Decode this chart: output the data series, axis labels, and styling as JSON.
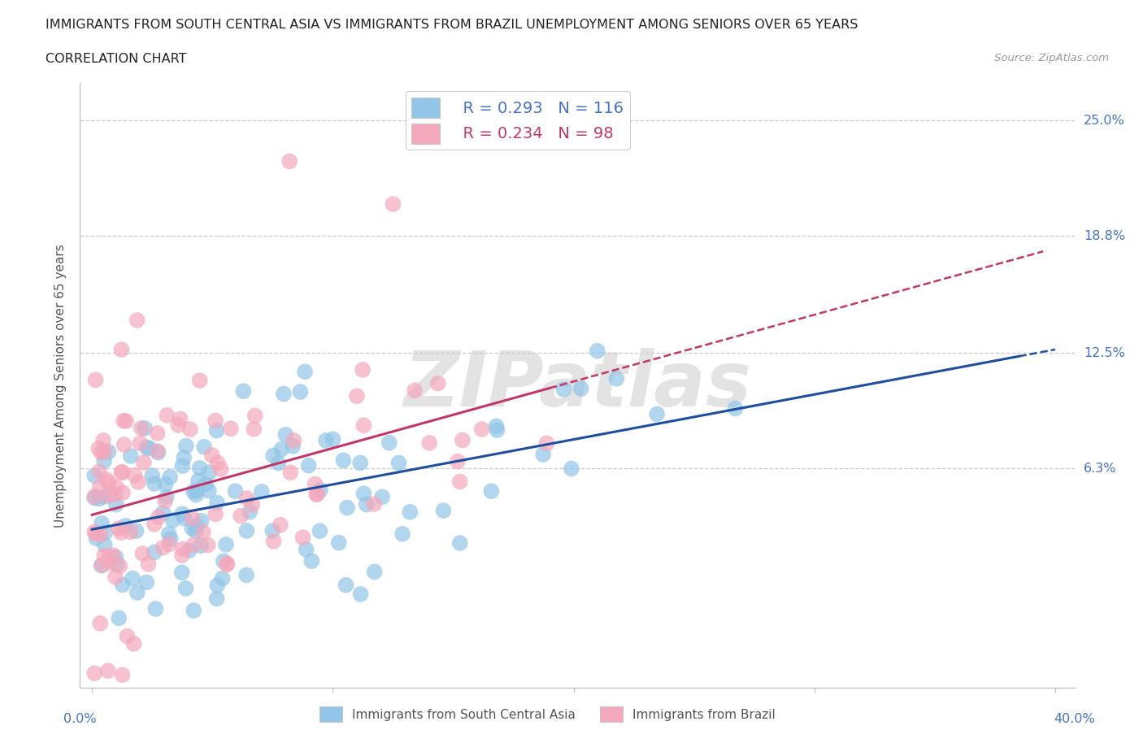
{
  "title_line1": "IMMIGRANTS FROM SOUTH CENTRAL ASIA VS IMMIGRANTS FROM BRAZIL UNEMPLOYMENT AMONG SENIORS OVER 65 YEARS",
  "title_line2": "CORRELATION CHART",
  "source": "Source: ZipAtlas.com",
  "ylabel": "Unemployment Among Seniors over 65 years",
  "ytick_labels": [
    "25.0%",
    "18.8%",
    "12.5%",
    "6.3%"
  ],
  "ytick_values": [
    0.25,
    0.188,
    0.125,
    0.063
  ],
  "xrange": [
    0.0,
    0.4
  ],
  "yrange": [
    -0.05,
    0.27
  ],
  "legend_blue_R": "R = 0.293",
  "legend_blue_N": "N = 116",
  "legend_pink_R": "R = 0.234",
  "legend_pink_N": "N = 98",
  "legend_blue_label": "Immigrants from South Central Asia",
  "legend_pink_label": "Immigrants from Brazil",
  "blue_color": "#92C5E8",
  "pink_color": "#F4A8BC",
  "blue_line_color": "#1F4E9E",
  "pink_line_color": "#C0386A",
  "watermark": "ZIPatlas"
}
